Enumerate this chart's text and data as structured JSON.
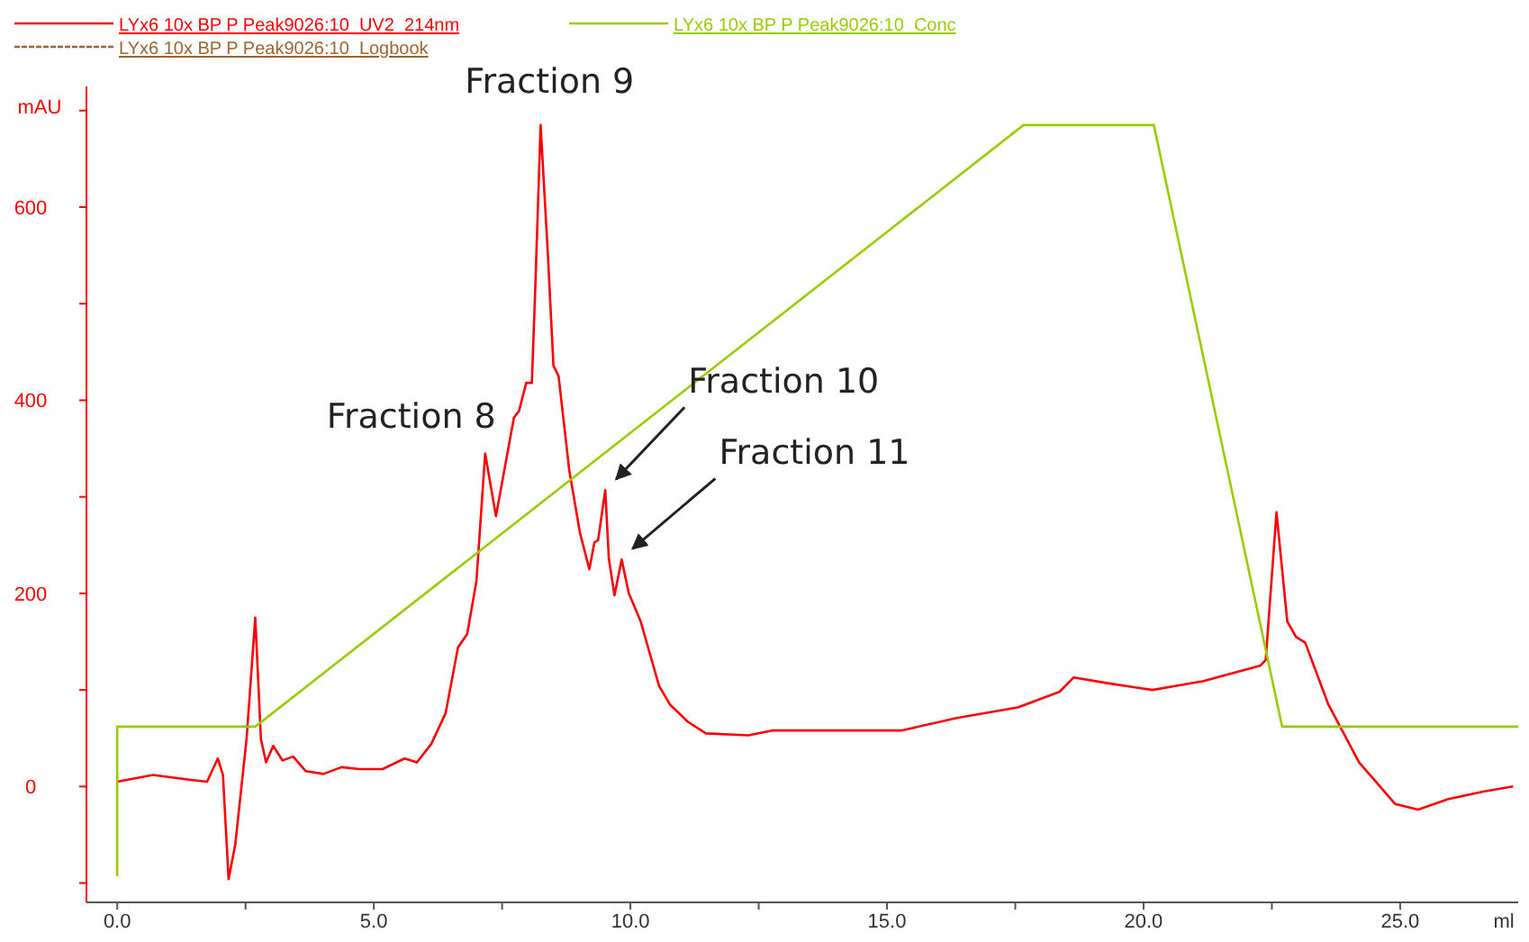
{
  "chart_data": {
    "type": "line",
    "xlabel": "ml",
    "ylabel": "mAU",
    "xlim": [
      -0.6,
      27.3
    ],
    "xticks": [
      {
        "value": 0,
        "label": "0.0"
      },
      {
        "value": 2.5,
        "label": null
      },
      {
        "value": 5,
        "label": "5.0"
      },
      {
        "value": 7.5,
        "label": null
      },
      {
        "value": 10,
        "label": "10.0"
      },
      {
        "value": 12.5,
        "label": null
      },
      {
        "value": 15,
        "label": "15.0"
      },
      {
        "value": 17.5,
        "label": null
      },
      {
        "value": 20,
        "label": "20.0"
      },
      {
        "value": 22.5,
        "label": null
      },
      {
        "value": 25,
        "label": "25.0"
      }
    ],
    "ylim": [
      -120,
      725
    ],
    "yticks": [
      {
        "value": -100,
        "label": null
      },
      0,
      {
        "value": 100,
        "label": null
      },
      200,
      {
        "value": 300,
        "label": null
      },
      400,
      {
        "value": 500,
        "label": null
      },
      600,
      {
        "value": 700,
        "label": null
      }
    ],
    "grid": false,
    "legend": "top left",
    "series": [
      {
        "name": "LYx6 10x BP P Peak9026:10_UV2_214nm",
        "color": "#ff0000",
        "x": [
          0,
          0.7,
          1.4,
          1.75,
          1.96,
          2.06,
          2.17,
          2.3,
          2.52,
          2.69,
          2.8,
          2.9,
          3.04,
          3.22,
          3.43,
          3.67,
          4.02,
          4.37,
          4.72,
          5.17,
          5.6,
          5.84,
          6.12,
          6.4,
          6.64,
          6.82,
          7.0,
          7.17,
          7.38,
          7.73,
          7.83,
          7.97,
          8.08,
          8.15,
          8.25,
          8.39,
          8.5,
          8.6,
          8.81,
          9.02,
          9.2,
          9.3,
          9.37,
          9.51,
          9.58,
          9.69,
          9.83,
          9.97,
          10.2,
          10.56,
          10.77,
          11.12,
          11.47,
          12.3,
          12.76,
          13.46,
          15.28,
          16.36,
          17.55,
          18.36,
          18.64,
          19.3,
          20.17,
          21.15,
          22.27,
          22.38,
          22.59,
          22.8,
          22.97,
          23.15,
          23.6,
          24.2,
          24.9,
          25.35,
          25.94,
          26.64,
          27.2
        ],
        "values": [
          5,
          12,
          7,
          5,
          29,
          12,
          -96,
          -60,
          49,
          175,
          49,
          25,
          42,
          27,
          31,
          16,
          13,
          20,
          18,
          18,
          29,
          25,
          44,
          76,
          144,
          158,
          213,
          345,
          280,
          382,
          389,
          418,
          418,
          522,
          685,
          553,
          436,
          425,
          327,
          262,
          225,
          253,
          255,
          307,
          236,
          198,
          235,
          200,
          171,
          104,
          85,
          67,
          55,
          53,
          58,
          58,
          58,
          71,
          82,
          98,
          113,
          107,
          100,
          109,
          125,
          131,
          284,
          171,
          155,
          149,
          85,
          25,
          -18,
          -24,
          -13,
          -5,
          0
        ]
      },
      {
        "name": "LYx6 10x BP P Peak9026:10_Conc",
        "color": "#99cc00",
        "x": [
          0,
          0,
          2.69,
          17.66,
          20.2,
          22.7,
          27.3
        ],
        "values": [
          -93,
          62,
          62,
          685,
          685,
          62,
          62
        ]
      },
      {
        "name": "LYx6 10x BP P Peak9026:10_Logbook",
        "color": "#996633",
        "line_style": "dashed"
      }
    ],
    "annotations": [
      {
        "text": "Fraction 9",
        "x": 8.25,
        "y": 685
      },
      {
        "text": "Fraction 8",
        "x": 7.17,
        "y": 345
      },
      {
        "text": "Fraction 10",
        "x": 9.51,
        "y": 307
      },
      {
        "text": "Fraction 11",
        "x": 9.83,
        "y": 235
      }
    ]
  }
}
